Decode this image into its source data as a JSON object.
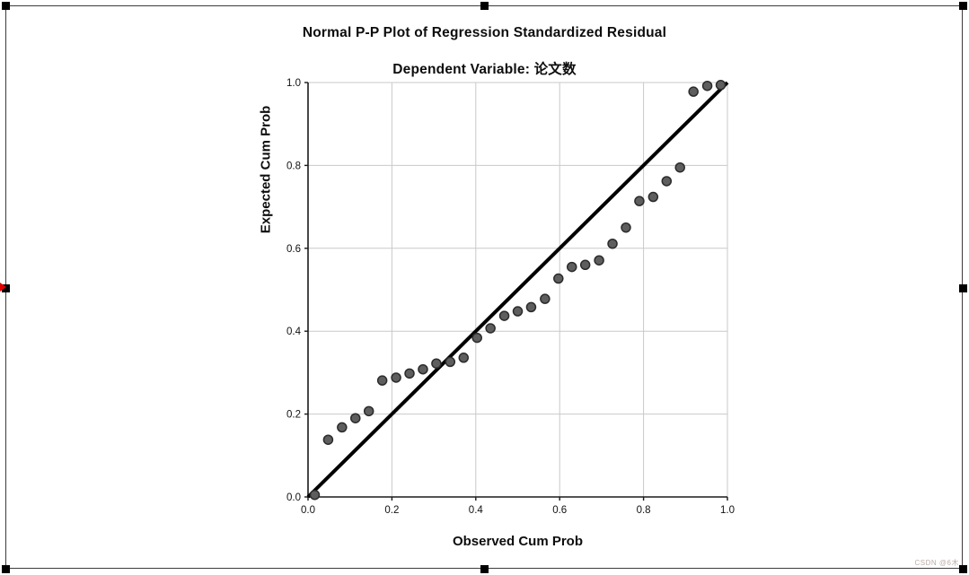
{
  "selection_frame": {
    "border_color": "#3c3c3c",
    "handle_color": "#000000",
    "marker_color": "#e00000",
    "handles": [
      "top-left",
      "top-center",
      "top-right",
      "middle-left",
      "middle-right",
      "bottom-left",
      "bottom-center",
      "bottom-right"
    ]
  },
  "watermark": {
    "text": "CSDN @6木",
    "color": "#bdaca7"
  },
  "chart_data": {
    "type": "scatter",
    "title": "Normal P-P Plot of Regression Standardized Residual",
    "subtitle": "Dependent Variable: 论文数",
    "xlabel": "Observed Cum Prob",
    "ylabel": "Expected Cum Prob",
    "xlim": [
      0,
      1
    ],
    "ylim": [
      0,
      1
    ],
    "x_tick_labels": [
      "0.0",
      "0.2",
      "0.4",
      "0.6",
      "0.8",
      "1.0"
    ],
    "y_tick_labels": [
      "0.0",
      "0.2",
      "0.4",
      "0.6",
      "0.8",
      "1.0"
    ],
    "tick_values": [
      0,
      0.2,
      0.4,
      0.6,
      0.8,
      1.0
    ],
    "grid": true,
    "grid_color": "#c9c9c9",
    "axis_color": "#1a1a1a",
    "reference_line": {
      "from": [
        0,
        0
      ],
      "to": [
        1,
        1
      ],
      "color": "#000000",
      "width": 4
    },
    "marker": {
      "fill": "#5e5e5e",
      "stroke": "#2b2b2b",
      "radius": 5
    },
    "points": [
      [
        0.016,
        0.005
      ],
      [
        0.048,
        0.138
      ],
      [
        0.081,
        0.168
      ],
      [
        0.113,
        0.19
      ],
      [
        0.145,
        0.207
      ],
      [
        0.177,
        0.281
      ],
      [
        0.21,
        0.288
      ],
      [
        0.242,
        0.298
      ],
      [
        0.274,
        0.308
      ],
      [
        0.306,
        0.322
      ],
      [
        0.339,
        0.326
      ],
      [
        0.371,
        0.336
      ],
      [
        0.403,
        0.384
      ],
      [
        0.435,
        0.407
      ],
      [
        0.468,
        0.437
      ],
      [
        0.5,
        0.448
      ],
      [
        0.532,
        0.458
      ],
      [
        0.565,
        0.478
      ],
      [
        0.597,
        0.527
      ],
      [
        0.629,
        0.555
      ],
      [
        0.661,
        0.56
      ],
      [
        0.694,
        0.571
      ],
      [
        0.726,
        0.611
      ],
      [
        0.758,
        0.65
      ],
      [
        0.79,
        0.714
      ],
      [
        0.823,
        0.724
      ],
      [
        0.855,
        0.762
      ],
      [
        0.887,
        0.795
      ],
      [
        0.919,
        0.978
      ],
      [
        0.952,
        0.992
      ],
      [
        0.984,
        0.994
      ]
    ]
  }
}
